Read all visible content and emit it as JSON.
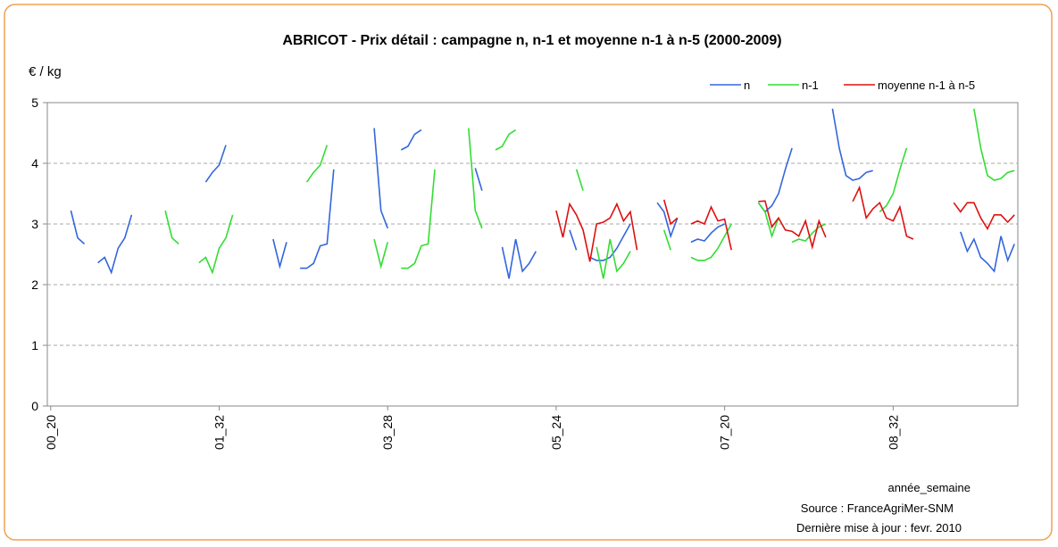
{
  "chart_data": {
    "type": "line",
    "title": "ABRICOT - Prix détail : campagne n, n-1 et moyenne n-1 à n-5 (2000-2009)",
    "y_label": "€ / kg",
    "x_label": "année_semaine",
    "source": "Source : FranceAgriMer-SNM",
    "updated": "Dernière mise à jour : fevr. 2010",
    "ylim": [
      0,
      5
    ],
    "yticks": [
      0,
      1,
      2,
      3,
      4,
      5
    ],
    "grid": true,
    "legend": "top-right",
    "categories": [
      "00_20",
      null,
      null,
      null,
      null,
      null,
      null,
      null,
      null,
      null,
      null,
      null,
      null,
      null,
      null,
      null,
      null,
      null,
      null,
      null,
      null,
      null,
      null,
      null,
      null,
      "01_32",
      null,
      null,
      null,
      null,
      null,
      null,
      null,
      null,
      null,
      null,
      null,
      null,
      null,
      null,
      null,
      null,
      null,
      null,
      null,
      null,
      null,
      null,
      null,
      null,
      "03_28",
      null,
      null,
      null,
      null,
      null,
      null,
      null,
      null,
      null,
      null,
      null,
      null,
      null,
      null,
      null,
      null,
      null,
      null,
      null,
      null,
      null,
      null,
      null,
      null,
      "05_24",
      null,
      null,
      null,
      null,
      null,
      null,
      null,
      null,
      null,
      null,
      null,
      null,
      null,
      null,
      null,
      null,
      null,
      null,
      null,
      null,
      null,
      null,
      null,
      null,
      "07_20",
      null,
      null,
      null,
      null,
      null,
      null,
      null,
      null,
      null,
      null,
      null,
      null,
      null,
      null,
      null,
      null,
      null,
      null,
      null,
      null,
      null,
      null,
      null,
      null,
      "08_32",
      null,
      null,
      null,
      null,
      null,
      null,
      null,
      null,
      null,
      null,
      null,
      null,
      null,
      null,
      null,
      null,
      null,
      null
    ],
    "series": [
      {
        "name": "n",
        "color": "#3366dd",
        "values": [
          null,
          null,
          null,
          3.22,
          2.77,
          2.67,
          null,
          2.36,
          2.45,
          2.2,
          2.6,
          2.77,
          3.15,
          null,
          null,
          null,
          null,
          null,
          null,
          null,
          null,
          null,
          null,
          3.69,
          3.85,
          3.97,
          4.3,
          null,
          null,
          null,
          null,
          null,
          null,
          2.75,
          2.3,
          2.7,
          null,
          2.27,
          2.27,
          2.35,
          2.64,
          2.67,
          3.9,
          null,
          null,
          null,
          null,
          null,
          4.58,
          3.22,
          2.93,
          null,
          4.22,
          4.28,
          4.48,
          4.55,
          null,
          null,
          null,
          null,
          null,
          null,
          null,
          3.92,
          3.55,
          null,
          null,
          2.62,
          2.1,
          2.75,
          2.22,
          2.35,
          2.55,
          null,
          null,
          null,
          null,
          2.9,
          2.57,
          null,
          2.45,
          2.4,
          2.4,
          2.45,
          2.6,
          2.8,
          3.0,
          null,
          null,
          null,
          3.35,
          3.2,
          2.8,
          3.1,
          null,
          2.7,
          2.75,
          2.72,
          2.85,
          2.95,
          3.0,
          null,
          null,
          null,
          null,
          3.35,
          3.2,
          3.3,
          3.5,
          3.9,
          4.25,
          null,
          null,
          null,
          null,
          null,
          4.9,
          4.25,
          3.8,
          3.72,
          3.75,
          3.85,
          3.88,
          null,
          null,
          null,
          null,
          null,
          null,
          null,
          null,
          null,
          null,
          null,
          null,
          2.87,
          2.55,
          2.75,
          2.45,
          2.35,
          2.22,
          2.8,
          2.4,
          2.67
        ]
      },
      {
        "name": "n-1",
        "color": "#33dd33",
        "values": [
          null,
          null,
          null,
          null,
          null,
          null,
          null,
          null,
          null,
          null,
          null,
          null,
          null,
          null,
          null,
          null,
          null,
          3.22,
          2.77,
          2.67,
          null,
          null,
          2.36,
          2.45,
          2.2,
          2.6,
          2.77,
          3.15,
          null,
          null,
          null,
          null,
          null,
          null,
          null,
          null,
          null,
          null,
          3.69,
          3.85,
          3.97,
          4.3,
          null,
          null,
          null,
          null,
          null,
          null,
          2.75,
          2.3,
          2.7,
          null,
          2.27,
          2.27,
          2.35,
          2.64,
          2.67,
          3.9,
          null,
          null,
          null,
          null,
          4.58,
          3.22,
          2.93,
          null,
          4.22,
          4.28,
          4.48,
          4.55,
          null,
          null,
          null,
          null,
          null,
          null,
          null,
          null,
          3.9,
          3.55,
          null,
          2.62,
          2.1,
          2.75,
          2.22,
          2.35,
          2.55,
          null,
          null,
          null,
          null,
          2.9,
          2.57,
          null,
          null,
          2.45,
          2.4,
          2.4,
          2.45,
          2.6,
          2.8,
          3.0,
          null,
          null,
          null,
          3.35,
          3.2,
          2.8,
          3.1,
          null,
          2.7,
          2.75,
          2.72,
          2.85,
          2.95,
          3.0,
          null,
          null,
          null,
          null,
          null,
          null,
          null,
          3.2,
          3.3,
          3.5,
          3.9,
          4.25,
          null,
          null,
          null,
          null,
          null,
          null,
          null,
          null,
          null,
          4.9,
          4.25,
          3.8,
          3.72,
          3.75,
          3.85,
          3.88
        ]
      },
      {
        "name": "moyenne n-1 à n-5",
        "color": "#dd1111",
        "values": [
          null,
          null,
          null,
          null,
          null,
          null,
          null,
          null,
          null,
          null,
          null,
          null,
          null,
          null,
          null,
          null,
          null,
          null,
          null,
          null,
          null,
          null,
          null,
          null,
          null,
          null,
          null,
          null,
          null,
          null,
          null,
          null,
          null,
          null,
          null,
          null,
          null,
          null,
          null,
          null,
          null,
          null,
          null,
          null,
          null,
          null,
          null,
          null,
          null,
          null,
          null,
          null,
          null,
          null,
          null,
          null,
          null,
          null,
          null,
          null,
          null,
          null,
          null,
          null,
          null,
          null,
          null,
          null,
          null,
          null,
          null,
          null,
          null,
          null,
          null,
          3.22,
          2.78,
          3.33,
          3.15,
          2.9,
          2.38,
          3.0,
          3.03,
          3.1,
          3.33,
          3.05,
          3.2,
          2.57,
          null,
          null,
          null,
          3.4,
          3.0,
          3.1,
          null,
          3.0,
          3.05,
          3.0,
          3.28,
          3.05,
          3.08,
          2.57,
          null,
          null,
          null,
          3.37,
          3.38,
          2.95,
          3.1,
          2.9,
          2.88,
          2.8,
          3.05,
          2.62,
          3.05,
          2.78,
          null,
          null,
          null,
          3.37,
          3.6,
          3.1,
          3.25,
          3.35,
          3.1,
          3.05,
          3.28,
          2.8,
          2.75,
          null,
          null,
          null,
          null,
          null,
          3.35,
          3.2,
          3.35,
          3.35,
          3.1,
          2.92,
          3.15,
          3.15,
          3.03,
          3.15
        ]
      }
    ]
  }
}
